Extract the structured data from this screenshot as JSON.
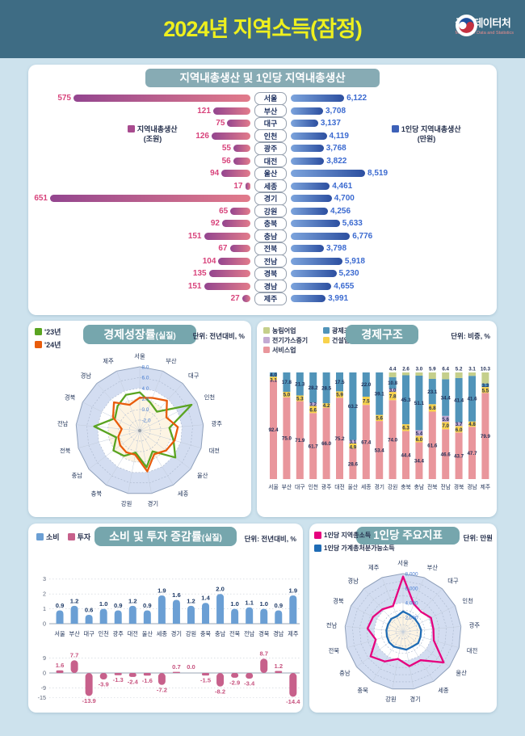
{
  "header": {
    "title": "2024년 지역소득(잠정)",
    "logo": {
      "name": "국가데이터처",
      "sub": "Ministry of Data and Statistics"
    }
  },
  "regions": [
    "서울",
    "부산",
    "대구",
    "인천",
    "광주",
    "대전",
    "울산",
    "세종",
    "경기",
    "강원",
    "충북",
    "충남",
    "전북",
    "전남",
    "경북",
    "경남",
    "제주"
  ],
  "colors": {
    "page_bg": "#cde2ed",
    "header_bg": "#3e6c84",
    "header_title": "#eef01e",
    "title_pill": "#76a6ad",
    "grdp_title_bar": "#87abb4",
    "pink_bar_from": "#93458f",
    "pink_bar_to": "#e27b8b",
    "pink_value": "#d8447c",
    "blue_bar_from": "#7ca4dd",
    "blue_bar_to": "#2c4fa0",
    "blue_value": "#3b6ad0",
    "radar_band_blue": "#d3ddf1",
    "radar_band_white": "#ffffff",
    "radar_band_cream": "#fdf4e3"
  },
  "chart_data": [
    {
      "id": "grdp-tornado",
      "type": "bar",
      "title": "지역내총생산 및 1인당 지역내총생산",
      "categories": [
        "서울",
        "부산",
        "대구",
        "인천",
        "광주",
        "대전",
        "울산",
        "세종",
        "경기",
        "강원",
        "충북",
        "충남",
        "전북",
        "전남",
        "경북",
        "경남",
        "제주"
      ],
      "series": [
        {
          "name": "지역내총생산",
          "unit": "(조원)",
          "color": "#a84b8f",
          "values": [
            575,
            121,
            75,
            126,
            55,
            56,
            94,
            17,
            651,
            65,
            92,
            151,
            67,
            104,
            135,
            151,
            27
          ],
          "max": 651
        },
        {
          "name": "1인당 지역내총생산",
          "unit": "(만원)",
          "color": "#3d61b8",
          "values": [
            6122,
            3708,
            3137,
            4119,
            3768,
            3822,
            8519,
            4461,
            4700,
            4256,
            5633,
            6776,
            3798,
            5918,
            5230,
            4655,
            3991
          ],
          "max": 8519
        }
      ]
    },
    {
      "id": "growth-radar",
      "type": "radar",
      "title_main": "경제성장률",
      "title_paren": "(실질)",
      "unit_label": "단위: 전년대비, %",
      "categories": [
        "서울",
        "부산",
        "대구",
        "인천",
        "광주",
        "대전",
        "울산",
        "세종",
        "경기",
        "강원",
        "충북",
        "충남",
        "전북",
        "전남",
        "경북",
        "경남",
        "제주"
      ],
      "rmin": -4,
      "rmax": 8,
      "rings": [
        -2,
        0,
        2,
        4,
        6,
        8
      ],
      "ticks": [
        {
          "v": 8,
          "label": "8.0"
        },
        {
          "v": 6,
          "label": "6.0"
        },
        {
          "v": 4,
          "label": "4.0"
        },
        {
          "v": 2,
          "label": "2.0"
        },
        {
          "v": 0,
          "label": "0.0"
        },
        {
          "v": -2,
          "label": "-2.0"
        }
      ],
      "bands": [
        {
          "v": 8,
          "color": "#d3ddf1"
        },
        {
          "v": 4,
          "color": "#ffffff"
        },
        {
          "v": 2,
          "color": "#fdf4e3"
        }
      ],
      "center_dot": true,
      "series": [
        {
          "name": "'23년",
          "color": "#5aa421",
          "values": [
            3.2,
            1.6,
            0.8,
            6.9,
            1.6,
            2.6,
            4.4,
            0.6,
            3.0,
            0.2,
            1.6,
            2.2,
            0.6,
            4.6,
            1.2,
            2.2,
            3.2
          ]
        },
        {
          "name": "'24년",
          "color": "#e85c0c",
          "values": [
            2.2,
            2.6,
            3.6,
            1.6,
            3.2,
            2.8,
            2.2,
            1.2,
            3.8,
            0.6,
            0.8,
            0.6,
            0.2,
            -0.6,
            1.6,
            3.2,
            1.2
          ]
        }
      ]
    },
    {
      "id": "economic-structure",
      "type": "bar",
      "stacked": true,
      "title": "경제구조",
      "unit_label": "단위: 비중, %",
      "categories": [
        "서울",
        "부산",
        "대구",
        "인천",
        "광주",
        "대전",
        "울산",
        "세종",
        "경기",
        "강원",
        "충북",
        "충남",
        "전북",
        "전남",
        "경북",
        "경남",
        "제주"
      ],
      "legend_display_order": [
        0,
        2,
        4,
        1,
        3
      ],
      "series": [
        {
          "name": "농림어업",
          "color": "#c5cf8b",
          "values": [
            0,
            0,
            0,
            0,
            0,
            0,
            0,
            0,
            0,
            4.4,
            2.6,
            3.0,
            5.9,
            6.4,
            5.2,
            3.1,
            10.3
          ]
        },
        {
          "name": "광제조업",
          "color": "#5194b9",
          "values": [
            4.0,
            17.8,
            21.3,
            28.2,
            28.5,
            17.5,
            63.2,
            22.0,
            39.1,
            10.8,
            45.3,
            51.1,
            23.1,
            34.4,
            41.4,
            41.6,
            3.3
          ]
        },
        {
          "name": "전기가스증기",
          "color": "#c3aad3",
          "values": [
            0,
            0,
            0,
            3.2,
            0,
            0,
            3.1,
            0,
            0,
            3.0,
            0,
            5.4,
            0,
            5.6,
            3.7,
            0,
            0
          ]
        },
        {
          "name": "건설업",
          "color": "#f8d24b",
          "values": [
            3.1,
            5.0,
            5.3,
            6.6,
            4.2,
            5.9,
            4.9,
            7.5,
            5.6,
            7.8,
            6.3,
            6.0,
            6.8,
            7.0,
            6.0,
            4.8,
            5.5
          ]
        },
        {
          "name": "서비스업",
          "color": "#e9969c",
          "values": [
            92.4,
            75.0,
            71.9,
            61.7,
            66.0,
            75.2,
            28.6,
            67.4,
            53.4,
            74.0,
            44.4,
            34.4,
            61.6,
            46.6,
            43.7,
            47.7,
            79.9
          ]
        }
      ]
    },
    {
      "id": "consumption-investment",
      "type": "bar",
      "title_main": "소비 및 투자 증감률",
      "title_paren": "(실질)",
      "unit_label": "단위: 전년대비, %",
      "categories": [
        "서울",
        "부산",
        "대구",
        "인천",
        "광주",
        "대전",
        "울산",
        "세종",
        "경기",
        "강원",
        "충북",
        "충남",
        "전북",
        "전남",
        "경북",
        "경남",
        "제주"
      ],
      "series": [
        {
          "name": "소비",
          "color": "#6b9fd4",
          "ylim": [
            0,
            3
          ],
          "yticks": [
            3,
            2,
            1,
            0
          ],
          "values": [
            0.9,
            1.2,
            0.6,
            1.0,
            0.9,
            1.2,
            0.9,
            1.9,
            1.6,
            1.2,
            1.4,
            2.0,
            1.0,
            1.1,
            1.0,
            0.9,
            1.9
          ]
        },
        {
          "name": "투자",
          "color": "#c7608b",
          "ylim": [
            -15,
            9
          ],
          "yticks": [
            9,
            0,
            -9,
            -15
          ],
          "values": [
            1.6,
            7.7,
            -13.9,
            -3.9,
            -1.3,
            -2.4,
            -1.6,
            -7.2,
            0.7,
            0.0,
            -1.5,
            -8.2,
            -2.9,
            -3.4,
            8.7,
            1.2,
            -14.4
          ]
        }
      ]
    },
    {
      "id": "percapita-radar",
      "type": "radar",
      "title": "1인당 주요지표",
      "unit_label": "단위: 만원",
      "categories": [
        "서울",
        "부산",
        "대구",
        "인천",
        "광주",
        "대전",
        "울산",
        "세종",
        "경기",
        "강원",
        "충북",
        "충남",
        "전북",
        "전남",
        "경북",
        "경남",
        "제주"
      ],
      "rmin": 0,
      "rmax": 8000,
      "rings": [
        1000,
        2000,
        3000,
        4000,
        5000,
        6000,
        7000,
        8000
      ],
      "ticks": [
        {
          "v": 8000,
          "label": "8,000"
        },
        {
          "v": 6000,
          "label": "6,000"
        },
        {
          "v": 4000,
          "label": "4,000"
        },
        {
          "v": 2000,
          "label": "2,000"
        }
      ],
      "bands": [
        {
          "v": 8000,
          "color": "#d3ddf1"
        },
        {
          "v": 4000,
          "color": "#ffffff"
        },
        {
          "v": 2500,
          "color": "#fdf4e3"
        }
      ],
      "center_dot": false,
      "series": [
        {
          "name": "1인당 지역총소득",
          "color": "#e6017e",
          "values": [
            7600,
            4100,
            3700,
            4300,
            4200,
            4400,
            7000,
            4600,
            4800,
            3800,
            4800,
            5600,
            3900,
            4900,
            4600,
            4200,
            3800
          ]
        },
        {
          "name": "1인당 가계총처분가능소득",
          "color": "#1f6cb5",
          "values": [
            2800,
            2500,
            2400,
            2400,
            2500,
            2500,
            2600,
            2400,
            2500,
            2300,
            2400,
            2400,
            2300,
            2300,
            2300,
            2400,
            2300
          ]
        }
      ]
    }
  ]
}
